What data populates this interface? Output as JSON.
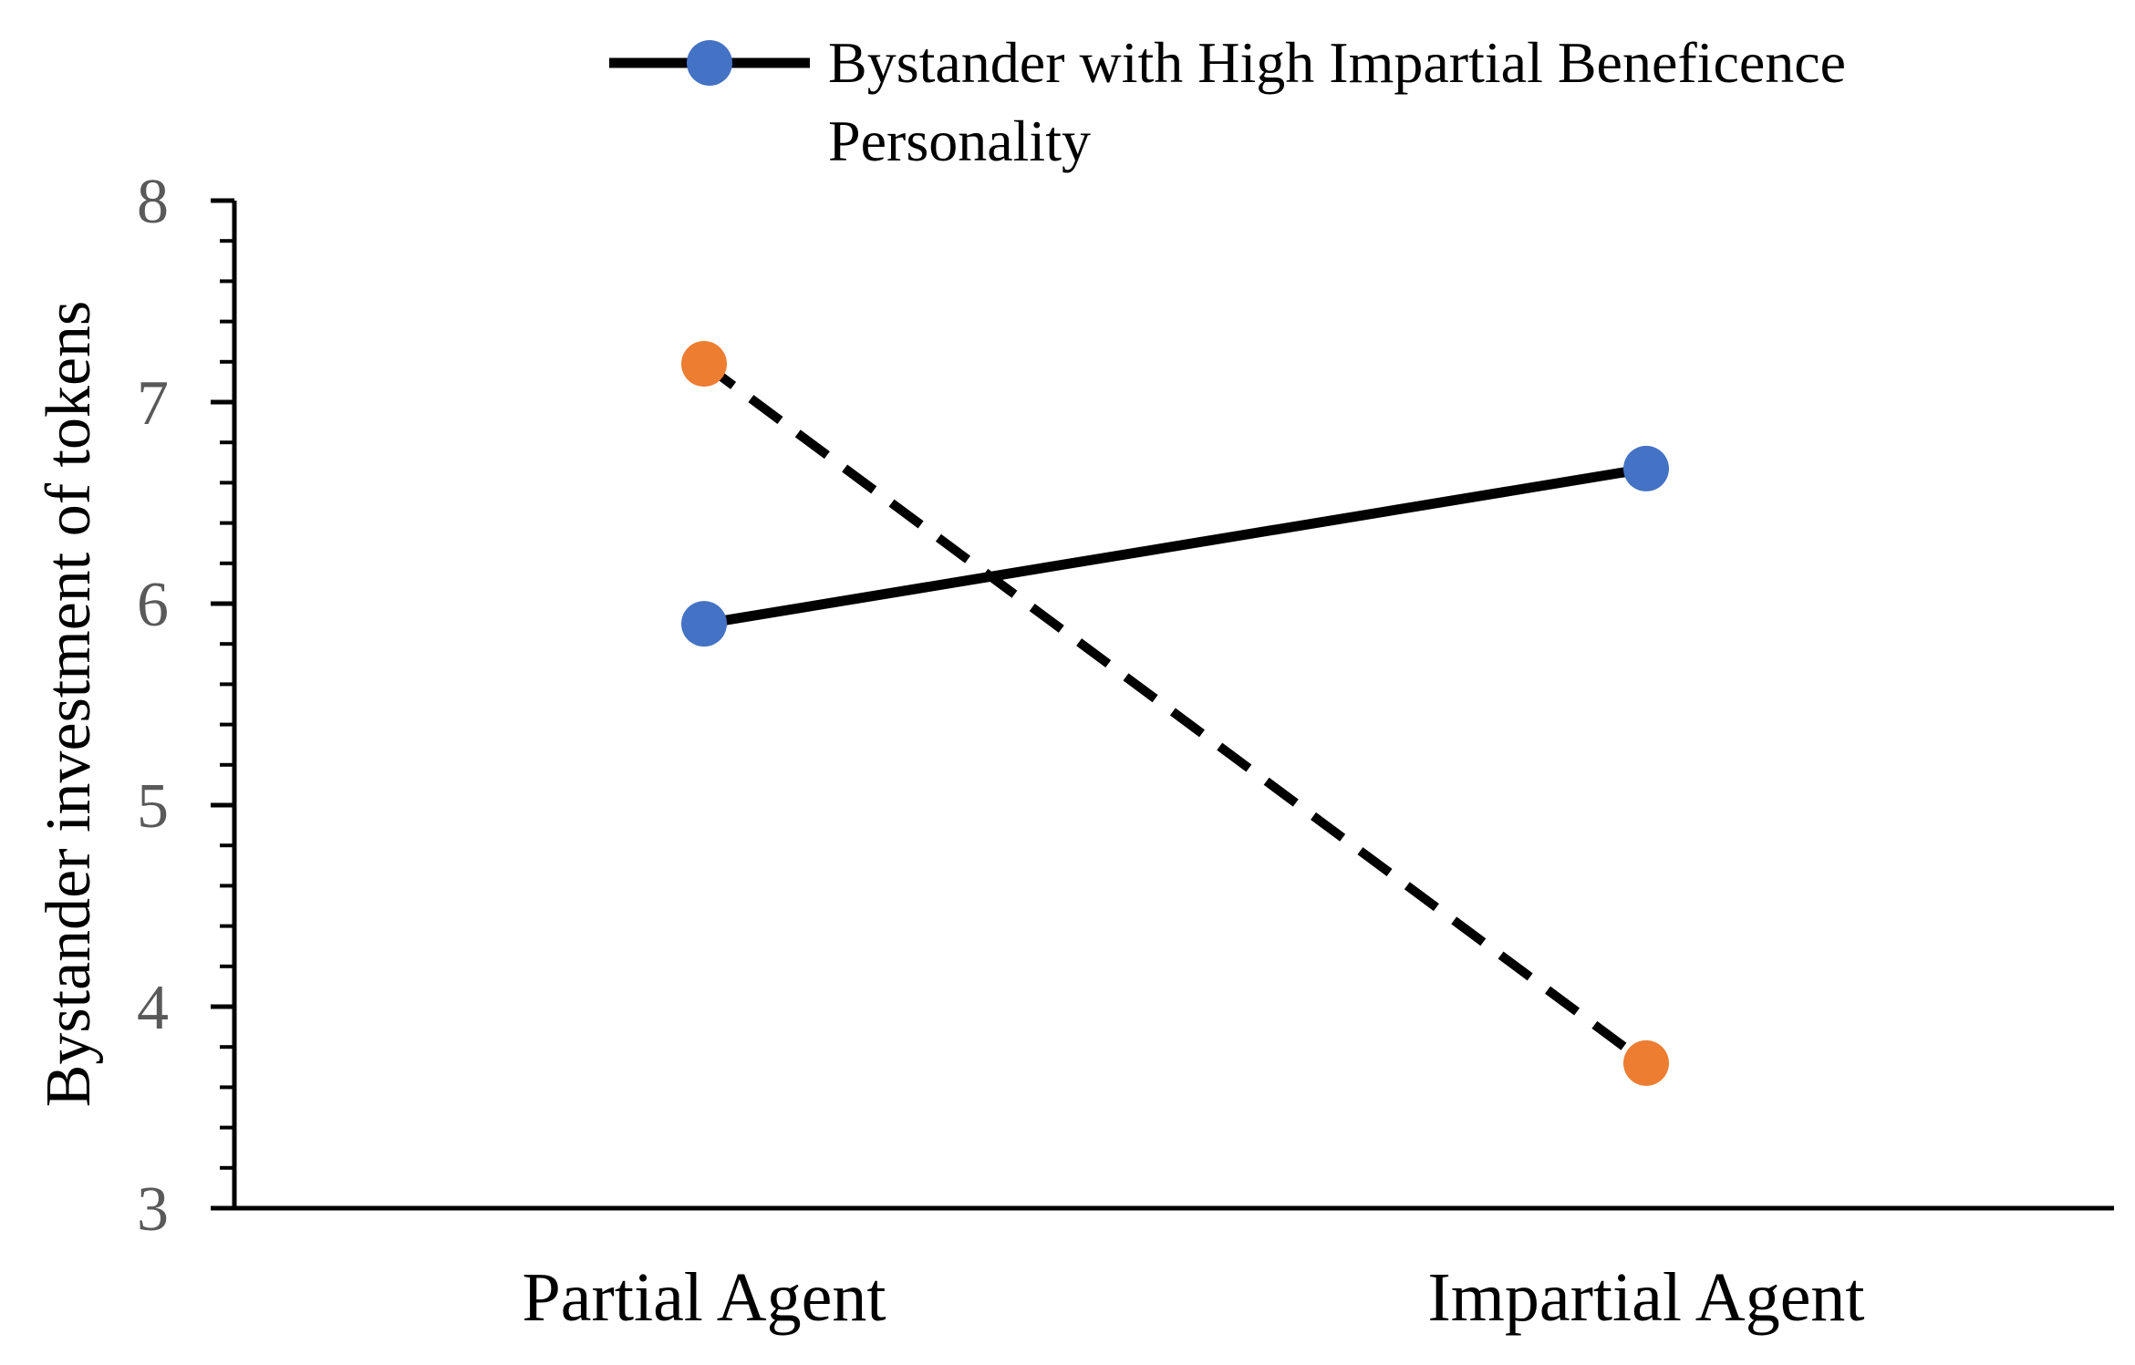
{
  "chart_data": {
    "type": "line",
    "categories": [
      "Partial Agent",
      "Impartial Agent"
    ],
    "series": [
      {
        "name": "Bystander with High Impartial Beneficence Personality",
        "values": [
          5.9,
          6.67
        ],
        "color": "#4472C4",
        "line_style": "solid",
        "line_color": "#000000",
        "in_legend": true
      },
      {
        "values": [
          7.19,
          3.72
        ],
        "color": "#ED7D31",
        "line_style": "dashed",
        "line_color": "#000000",
        "in_legend": false
      }
    ],
    "xlabel": "",
    "ylabel": "Bystander investment of tokens",
    "ylim": [
      3,
      8
    ],
    "y_major_ticks": [
      3,
      4,
      5,
      6,
      7,
      8
    ],
    "y_minor_step": 0.2,
    "grid": false,
    "legend": {
      "placement": "top",
      "lines": [
        "Bystander with High Impartial Beneficence",
        "Personality"
      ]
    }
  }
}
